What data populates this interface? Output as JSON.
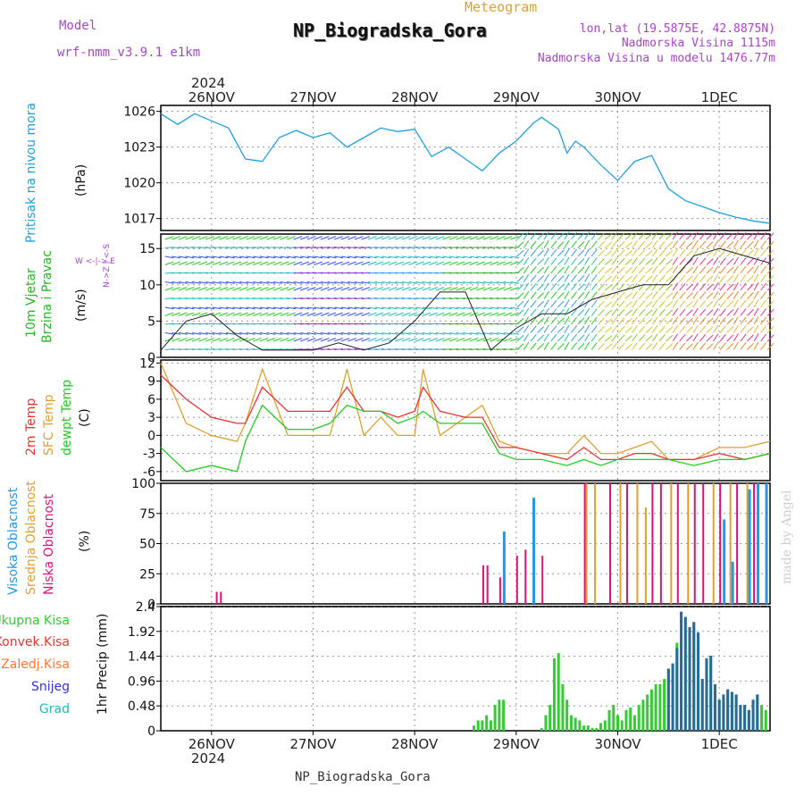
{
  "header": {
    "model_label": "Model",
    "model_name": "wrf-nmm_v3.9.1 e1km",
    "product": "Meteogram",
    "station": "NP_Biogradska_Gora",
    "lonlat": "lon,lat (19.5875E, 42.8875N)",
    "altitude": "Nadmorska Visina 1115m",
    "model_altitude": "Nadmorska Visina u modelu 1476.77m",
    "footer_station": "NP_Biogradska_Gora",
    "credit": "made by Angel",
    "year_top": "2024",
    "year_bottom": "2024"
  },
  "colors": {
    "pressure": "#1fa0e0",
    "wind_label": "#22bb22",
    "t2m": "#ee3333",
    "sfc": "#e0a030",
    "dewpt": "#22cc22",
    "high_cloud": "#2299ee",
    "mid_cloud": "#e0a030",
    "low_cloud": "#dd1177",
    "rain_total": "#33cc33",
    "rain_conv": "#ee3333",
    "rain_frz": "#ff7733",
    "snow": "#3333dd",
    "graupel": "#22bbbb",
    "model_text": "#aa44cc"
  },
  "axis": {
    "dates": [
      "26NOV",
      "27NOV",
      "28NOV",
      "29NOV",
      "30NOV",
      "1DEC"
    ]
  },
  "panels": {
    "pressure": {
      "label": "Pritisak na nivou mora",
      "unit": "(hPa)",
      "ticks": [
        "1026",
        "1023",
        "1020",
        "1017"
      ]
    },
    "wind": {
      "label1": "10m Vjetar",
      "label2": "Brzina i Pravac",
      "unit": "(m/s)",
      "compass": "W <-|-> E",
      "compass2": "N->Z | <-S",
      "ticks": [
        "15",
        "10",
        "5",
        "0"
      ]
    },
    "temp": {
      "label1": "2m Temp",
      "label2": "SFC Temp",
      "label3": "dewpt Temp",
      "unit": "(C)",
      "ticks": [
        "12",
        "9",
        "6",
        "3",
        "0",
        "-3",
        "-6"
      ]
    },
    "cloud": {
      "label1": "Visoka Oblacnost",
      "label2": "Srednja Oblacnost",
      "label3": "Niska Oblacnost",
      "unit": "(%)",
      "ticks": [
        "100",
        "75",
        "50",
        "25",
        "0"
      ]
    },
    "precip": {
      "unit": "1hr Precip (mm)",
      "ticks": [
        "2.4",
        "1.92",
        "1.44",
        "0.96",
        "0.48",
        "0"
      ],
      "legend": [
        "Ukupna Kisa",
        "Konvek.Kisa",
        "Zaledj.Kisa",
        "Snijeg",
        "Grad"
      ]
    }
  },
  "chart_data": [
    {
      "type": "line",
      "title": "Pritisak na nivou mora",
      "ylabel": "(hPa)",
      "ylim": [
        1016,
        1026.5
      ],
      "x_unit": "hours from 25NOV 12:00",
      "series": [
        {
          "name": "Pritisak na nivou mora",
          "x": [
            0,
            4,
            8,
            12,
            16,
            20,
            24,
            28,
            32,
            36,
            40,
            44,
            48,
            52,
            56,
            60,
            64,
            68,
            72,
            76,
            80,
            84,
            88,
            90,
            94,
            96,
            98,
            100,
            104,
            108,
            112,
            116,
            120,
            124,
            128,
            132,
            136,
            140,
            142,
            144
          ],
          "y": [
            1025.8,
            1024.9,
            1025.8,
            1025.2,
            1024.6,
            1022.0,
            1021.8,
            1023.8,
            1024.4,
            1023.8,
            1024.2,
            1023.0,
            1023.8,
            1024.6,
            1024.3,
            1024.5,
            1022.2,
            1023.0,
            1022.0,
            1021.0,
            1022.5,
            1023.5,
            1025.0,
            1025.5,
            1024.5,
            1022.5,
            1023.5,
            1023.0,
            1021.5,
            1020.2,
            1021.8,
            1022.3,
            1019.5,
            1018.5,
            1018.0,
            1017.5,
            1017.1,
            1016.8,
            1016.7,
            1016.6
          ]
        }
      ]
    },
    {
      "type": "line",
      "title": "10m Vjetar Brzina i Pravac",
      "ylabel": "(m/s)",
      "ylim": [
        0,
        17
      ],
      "series": [
        {
          "name": "10m Vjetar",
          "x": [
            0,
            6,
            12,
            18,
            24,
            30,
            36,
            42,
            48,
            54,
            60,
            66,
            72,
            78,
            84,
            90,
            96,
            102,
            108,
            114,
            120,
            126,
            132,
            138,
            144
          ],
          "y": [
            1,
            5,
            6,
            3,
            1,
            1,
            1,
            2,
            1,
            2,
            5,
            9,
            9,
            1,
            4,
            6,
            6,
            8,
            9,
            10,
            10,
            14,
            15,
            14,
            13
          ]
        }
      ]
    },
    {
      "type": "line",
      "title": "2m Temp / SFC Temp / dewpt Temp",
      "ylabel": "(C)",
      "ylim": [
        -7.5,
        12.5
      ],
      "series": [
        {
          "name": "2m Temp",
          "x": [
            0,
            6,
            12,
            18,
            20,
            24,
            30,
            36,
            40,
            44,
            48,
            52,
            56,
            60,
            62,
            66,
            72,
            76,
            80,
            84,
            90,
            96,
            100,
            104,
            108,
            112,
            116,
            120,
            126,
            132,
            138,
            144
          ],
          "y": [
            10,
            6,
            3,
            2,
            2,
            8,
            4,
            4,
            4,
            8,
            4,
            4,
            3,
            4,
            8,
            4,
            3,
            3,
            -2,
            -2,
            -3,
            -4,
            -2,
            -4,
            -4,
            -3,
            -3,
            -4,
            -4,
            -3,
            -4,
            -3
          ]
        },
        {
          "name": "SFC Temp",
          "x": [
            0,
            6,
            12,
            18,
            20,
            24,
            30,
            36,
            40,
            44,
            48,
            52,
            56,
            60,
            62,
            66,
            72,
            76,
            80,
            84,
            90,
            96,
            100,
            104,
            108,
            112,
            116,
            120,
            126,
            132,
            138,
            144
          ],
          "y": [
            12,
            2,
            0,
            -1,
            2,
            11,
            0,
            0,
            0,
            11,
            0,
            3,
            0,
            0,
            11,
            0,
            3,
            5,
            -1,
            -2,
            -3,
            -3,
            0,
            -3,
            -3,
            -2,
            -1,
            -4,
            -4,
            -2,
            -2,
            -1
          ]
        },
        {
          "name": "dewpt Temp",
          "x": [
            0,
            6,
            12,
            18,
            20,
            24,
            30,
            36,
            40,
            44,
            48,
            52,
            56,
            60,
            62,
            66,
            72,
            76,
            80,
            84,
            90,
            96,
            100,
            104,
            108,
            112,
            116,
            120,
            126,
            132,
            138,
            144
          ],
          "y": [
            -2,
            -6,
            -5,
            -6,
            -1,
            5,
            1,
            1,
            2,
            5,
            4,
            4,
            2,
            3,
            4,
            2,
            2,
            2,
            -3,
            -4,
            -4,
            -5,
            -4,
            -5,
            -4,
            -4,
            -4,
            -4,
            -5,
            -4,
            -4,
            -3
          ]
        }
      ]
    },
    {
      "type": "bar",
      "title": "Oblacnost",
      "ylabel": "(%)",
      "ylim": [
        0,
        100
      ],
      "series": [
        {
          "name": "Niska Oblacnost",
          "x": [
            13,
            14,
            76,
            77,
            80,
            84,
            86,
            88,
            90,
            100,
            106,
            110,
            116,
            118,
            122,
            126,
            128,
            132,
            136,
            140
          ],
          "values": [
            10,
            10,
            32,
            32,
            22,
            40,
            45,
            45,
            40,
            100,
            100,
            100,
            100,
            100,
            100,
            100,
            100,
            100,
            100,
            100
          ]
        },
        {
          "name": "Srednja Oblacnost",
          "x": [
            100,
            102,
            108,
            112,
            114,
            120,
            124,
            130,
            134,
            138
          ],
          "values": [
            100,
            100,
            100,
            100,
            80,
            100,
            100,
            100,
            100,
            100
          ]
        },
        {
          "name": "Visoka Oblacnost",
          "x": [
            80,
            87,
            132,
            134,
            138,
            140,
            142
          ],
          "values": [
            60,
            88,
            70,
            35,
            95,
            100,
            100
          ]
        }
      ]
    },
    {
      "type": "bar",
      "title": "1hr Precip",
      "ylabel": "1hr Precip (mm)",
      "ylim": [
        0,
        2.4
      ],
      "series": [
        {
          "name": "Ukupna Kisa",
          "x": [
            74,
            75,
            76,
            77,
            78,
            79,
            80,
            81,
            90,
            91,
            92,
            93,
            94,
            95,
            96,
            97,
            98,
            99,
            100,
            101,
            102,
            103,
            104,
            105,
            106,
            107,
            108,
            109,
            110,
            111,
            112,
            113,
            114,
            115,
            116,
            117,
            118,
            119,
            120,
            121,
            122,
            123,
            124,
            125,
            126,
            127,
            128,
            129,
            130,
            131,
            132,
            133,
            134,
            135,
            136,
            137,
            138,
            139,
            140,
            141,
            142,
            143
          ],
          "values": [
            0.1,
            0.2,
            0.2,
            0.3,
            0.2,
            0.5,
            0.6,
            0.6,
            0.05,
            0.3,
            0.5,
            1.4,
            1.5,
            0.9,
            0.6,
            0.3,
            0.25,
            0.2,
            0.1,
            0.1,
            0.05,
            0.05,
            0.15,
            0.2,
            0.4,
            0.5,
            0.3,
            0.2,
            0.4,
            0.45,
            0.3,
            0.5,
            0.6,
            0.7,
            0.8,
            0.9,
            0.9,
            1.0,
            1.2,
            1.3,
            1.7,
            2.3,
            2.2,
            2.0,
            2.1,
            1.9,
            1.0,
            1.4,
            1.45,
            0.9,
            0.6,
            0.7,
            0.8,
            0.75,
            0.7,
            0.5,
            0.5,
            0.4,
            0.6,
            0.7,
            0.5,
            0.4
          ]
        },
        {
          "name": "Snijeg",
          "x": [
            120,
            121,
            122,
            123,
            124,
            125,
            126,
            127,
            128,
            129,
            130,
            131,
            132,
            133,
            134,
            135,
            136,
            137,
            138,
            139,
            140,
            141
          ],
          "values": [
            1.2,
            1.3,
            1.6,
            2.3,
            2.2,
            2.0,
            2.1,
            1.9,
            1.0,
            1.4,
            1.45,
            0.9,
            0.6,
            0.7,
            0.8,
            0.75,
            0.7,
            0.5,
            0.5,
            0.4,
            0.6,
            0.7
          ]
        }
      ]
    }
  ]
}
